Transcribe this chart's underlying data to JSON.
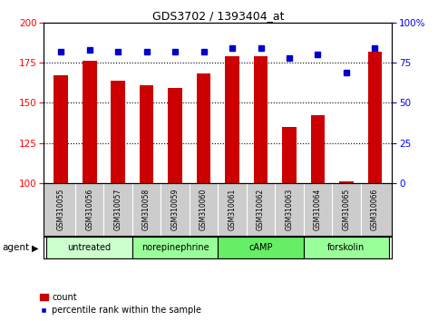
{
  "title": "GDS3702 / 1393404_at",
  "samples": [
    "GSM310055",
    "GSM310056",
    "GSM310057",
    "GSM310058",
    "GSM310059",
    "GSM310060",
    "GSM310061",
    "GSM310062",
    "GSM310063",
    "GSM310064",
    "GSM310065",
    "GSM310066"
  ],
  "counts": [
    167,
    176,
    164,
    161,
    159,
    168,
    179,
    179,
    135,
    142,
    101,
    182
  ],
  "percentiles": [
    82,
    83,
    82,
    82,
    82,
    82,
    84,
    84,
    78,
    80,
    69,
    84
  ],
  "ylim_left": [
    100,
    200
  ],
  "ylim_right": [
    0,
    100
  ],
  "yticks_left": [
    100,
    125,
    150,
    175,
    200
  ],
  "yticks_right": [
    0,
    25,
    50,
    75,
    100
  ],
  "ytick_right_labels": [
    "0",
    "25",
    "50",
    "75",
    "100%"
  ],
  "bar_color": "#cc0000",
  "dot_color": "#0000cc",
  "agent_groups": [
    {
      "label": "untreated",
      "start": 0,
      "end": 2,
      "color": "#ccffcc"
    },
    {
      "label": "norepinephrine",
      "start": 3,
      "end": 5,
      "color": "#99ff99"
    },
    {
      "label": "cAMP",
      "start": 6,
      "end": 8,
      "color": "#66ee66"
    },
    {
      "label": "forskolin",
      "start": 9,
      "end": 11,
      "color": "#99ff99"
    }
  ],
  "legend_count_label": "count",
  "legend_pct_label": "percentile rank within the sample",
  "background_color": "#ffffff",
  "sample_area_color": "#cccccc"
}
